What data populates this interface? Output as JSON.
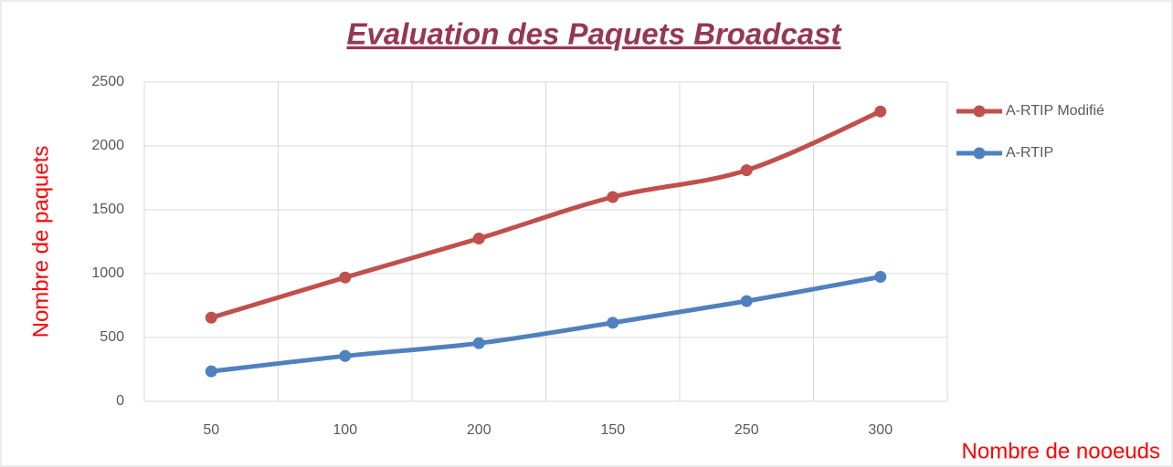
{
  "chart_data": {
    "type": "line",
    "title": "Evaluation des Paquets Broadcast",
    "x_label": "Nombre de nooeuds",
    "y_label": "Nombre de paquets",
    "categories": [
      "50",
      "100",
      "200",
      "150",
      "250",
      "300"
    ],
    "series": [
      {
        "name": "A-RTIP Modifié",
        "color": "#c0504d",
        "values": [
          655,
          970,
          1275,
          1600,
          1810,
          2270
        ]
      },
      {
        "name": "A-RTIP",
        "color": "#4f81bd",
        "values": [
          235,
          355,
          455,
          615,
          785,
          975
        ]
      }
    ],
    "ylim": [
      0,
      2500
    ],
    "yticks": [
      0,
      500,
      1000,
      1500,
      2000,
      2500
    ],
    "grid": true,
    "smooth": true,
    "legend": "right"
  }
}
